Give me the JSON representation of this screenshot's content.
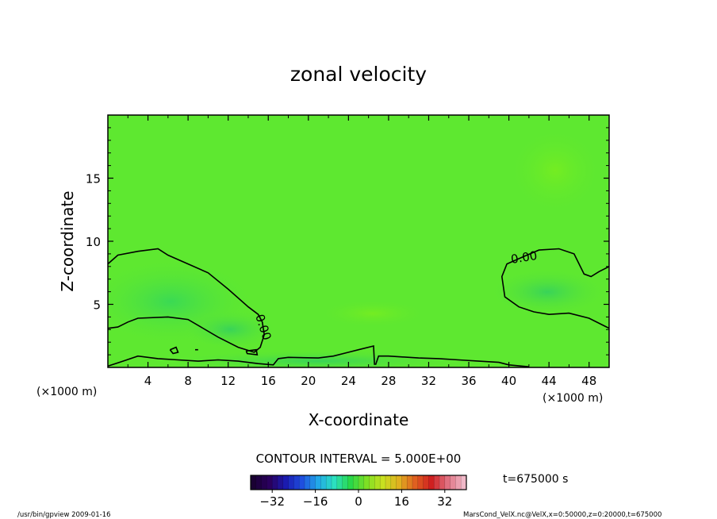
{
  "chart_data": {
    "type": "heatmap",
    "title": "zonal velocity",
    "xlabel": "X-coordinate",
    "ylabel": "Z-coordinate",
    "x_unit_left": "(×1000 m)",
    "x_unit_right": "(×1000 m)",
    "xlim": [
      0,
      50
    ],
    "ylim": [
      0,
      20
    ],
    "x_ticks": [
      4,
      8,
      12,
      16,
      20,
      24,
      28,
      32,
      36,
      40,
      44,
      48
    ],
    "y_ticks": [
      5,
      10,
      15
    ],
    "contour_interval_text": "CONTOUR INTERVAL = 5.000E+00",
    "contour_labels": [
      "0.00",
      "0.00"
    ],
    "time_text": "t=675000 s",
    "colorbar": {
      "min": -40,
      "max": 40,
      "ticks": [
        -32,
        -16,
        0,
        16,
        32
      ],
      "colors": [
        "#1a0033",
        "#2a005e",
        "#1b1bb0",
        "#1f4fe0",
        "#22a8e8",
        "#2be0c0",
        "#2ad84a",
        "#7de024",
        "#c8e020",
        "#e0b020",
        "#e06020",
        "#d02020",
        "#e07080",
        "#f0b8c8"
      ]
    },
    "field_color": "#5ee830",
    "contours_zero": [
      {
        "name": "left",
        "points": [
          [
            0,
            8.2
          ],
          [
            1,
            8.9
          ],
          [
            3,
            9.2
          ],
          [
            5,
            9.4
          ],
          [
            6,
            8.9
          ],
          [
            8,
            8.2
          ],
          [
            10,
            7.5
          ],
          [
            12,
            6.2
          ],
          [
            14,
            4.8
          ],
          [
            15,
            4.2
          ],
          [
            15.4,
            3.6
          ],
          [
            15.6,
            2.6
          ],
          [
            15.2,
            1.6
          ],
          [
            14.6,
            1.2
          ],
          [
            13,
            1.6
          ],
          [
            11,
            2.4
          ],
          [
            8,
            3.8
          ],
          [
            6,
            4.0
          ],
          [
            3,
            3.9
          ],
          [
            2,
            3.6
          ],
          [
            1,
            3.2
          ],
          [
            0,
            3.1
          ]
        ]
      },
      {
        "name": "right",
        "points": [
          [
            50,
            8.0
          ],
          [
            49,
            7.6
          ],
          [
            48.2,
            7.2
          ],
          [
            47.5,
            7.4
          ],
          [
            47,
            8.2
          ],
          [
            46.5,
            9.0
          ],
          [
            45,
            9.4
          ],
          [
            43,
            9.3
          ],
          [
            41.5,
            8.8
          ],
          [
            39.8,
            8.2
          ],
          [
            39.3,
            7.2
          ],
          [
            39.6,
            5.6
          ],
          [
            41,
            4.8
          ],
          [
            42.5,
            4.4
          ],
          [
            44,
            4.2
          ],
          [
            46,
            4.3
          ],
          [
            48,
            3.9
          ],
          [
            50,
            3.1
          ]
        ]
      },
      {
        "name": "bottom-left",
        "points": [
          [
            0,
            0.1
          ],
          [
            1.5,
            0.5
          ],
          [
            3,
            0.9
          ],
          [
            5,
            0.7
          ],
          [
            7,
            0.6
          ],
          [
            9,
            0.5
          ],
          [
            11,
            0.6
          ],
          [
            13,
            0.5
          ],
          [
            15,
            0.3
          ],
          [
            16.5,
            0.2
          ],
          [
            17,
            0.7
          ],
          [
            18,
            0.8
          ],
          [
            21,
            0.75
          ],
          [
            22.5,
            0.9
          ],
          [
            24,
            1.2
          ],
          [
            25,
            1.4
          ],
          [
            26.5,
            1.7
          ],
          [
            26.6,
            0.2
          ]
        ]
      },
      {
        "name": "bottom-right",
        "points": [
          [
            26.7,
            0.2
          ],
          [
            27,
            0.9
          ],
          [
            28,
            0.9
          ],
          [
            31,
            0.75
          ],
          [
            33,
            0.7
          ],
          [
            35,
            0.6
          ],
          [
            37,
            0.5
          ],
          [
            39,
            0.4
          ],
          [
            40,
            0.2
          ],
          [
            42,
            0.05
          ]
        ]
      }
    ],
    "small_contours": [
      {
        "name": "blob-a",
        "points": [
          [
            6.2,
            1.4
          ],
          [
            6.8,
            1.6
          ],
          [
            7.0,
            1.2
          ],
          [
            6.5,
            1.1
          ],
          [
            6.2,
            1.4
          ]
        ]
      },
      {
        "name": "blob-b",
        "points": [
          [
            8.7,
            1.4
          ],
          [
            9.0,
            1.4
          ]
        ]
      },
      {
        "name": "blob-c",
        "points": [
          [
            13.8,
            1.3
          ],
          [
            14.8,
            1.4
          ],
          [
            14.9,
            1.0
          ],
          [
            13.9,
            1.1
          ],
          [
            13.8,
            1.3
          ]
        ]
      }
    ],
    "colorbar_tick_labels": [
      "−32",
      "−16",
      "0",
      "16",
      "32"
    ],
    "x_tick_labels": [
      "4",
      "8",
      "12",
      "16",
      "20",
      "24",
      "28",
      "32",
      "36",
      "40",
      "44",
      "48"
    ],
    "y_tick_labels": [
      "5",
      "10",
      "15"
    ]
  },
  "footer": {
    "left": "/usr/bin/gpview   2009-01-16",
    "right": "MarsCond_VelX.nc@VelX,x=0:50000,z=0:20000,t=675000"
  }
}
